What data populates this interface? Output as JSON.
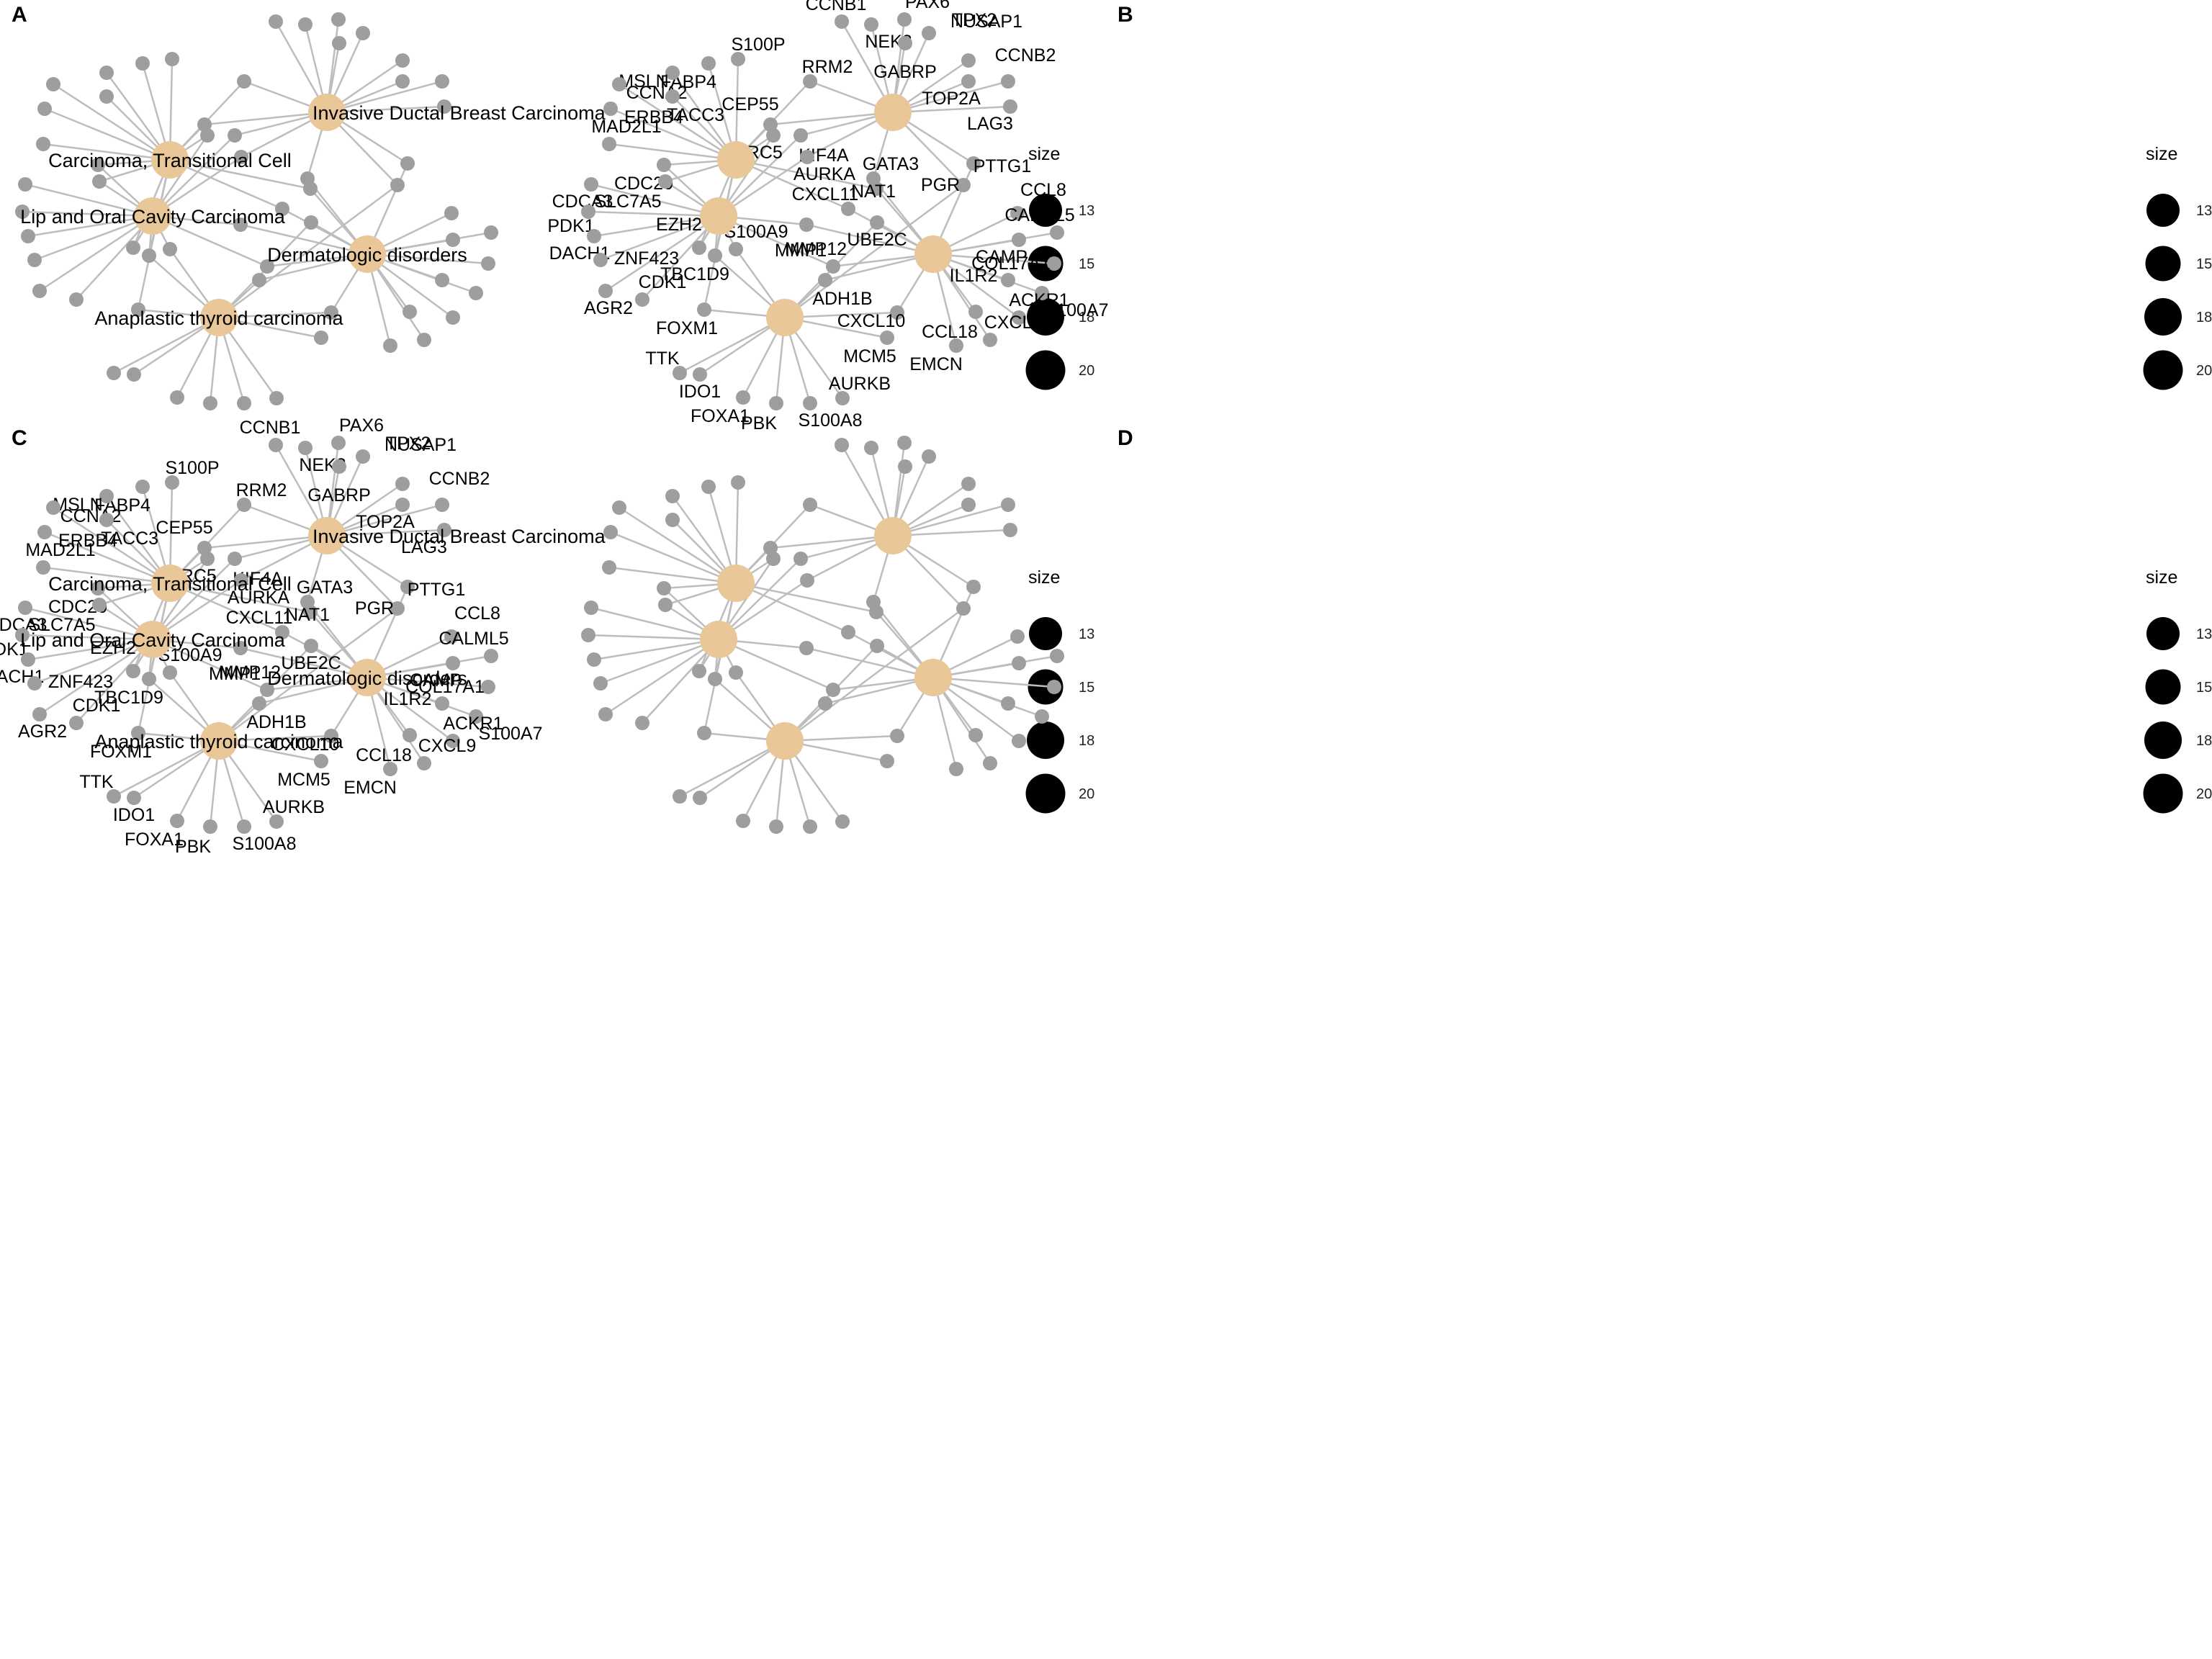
{
  "panels": [
    {
      "letter": "A",
      "show_gene_labels": false,
      "show_disease_labels": true
    },
    {
      "letter": "B",
      "show_gene_labels": true,
      "show_disease_labels": false
    },
    {
      "letter": "C",
      "show_gene_labels": true,
      "show_disease_labels": true
    },
    {
      "letter": "D",
      "show_gene_labels": false,
      "show_disease_labels": false
    }
  ],
  "legend": {
    "title": "size",
    "values": [
      "13",
      "15",
      "18",
      "20"
    ]
  },
  "colors": {
    "disease_node": "#e9c798",
    "gene_node": "#9e9e9e",
    "edge": "#bdbdbd"
  },
  "diseases": [
    "Invasive Ductal Breast Carcinoma",
    "Carcinoma, Transitional Cell",
    "Lip and Oral Cavity Carcinoma",
    "Dermatologic disorders",
    "Anaplastic thyroid carcinoma"
  ],
  "genes": [
    "CCNB1",
    "NEK2",
    "PAX6",
    "NUSAP1",
    "GABRP",
    "TPX2",
    "CCNB2",
    "TOP2A",
    "LAG3",
    "S100P",
    "FABP4",
    "MSLN",
    "RRM2",
    "CCNA2",
    "TACC3",
    "CEP55",
    "ERBB4",
    "BIRC5",
    "KIF4A",
    "MAD2L1",
    "AURKA",
    "PTTG1",
    "GATA3",
    "CDC20",
    "NAT1",
    "PGR",
    "CDCA3",
    "SLC7A5",
    "CXCL11",
    "CCL8",
    "PDK1",
    "MMP1",
    "CALML5",
    "UBE2C",
    "DACH1",
    "EZH2",
    "S100A9",
    "CAMP",
    "ZNF423",
    "TBC1D9",
    "MMP12",
    "COL17A1",
    "IL1R2",
    "ADH1B",
    "AGR2",
    "CDK1",
    "S100A7",
    "ACKR1",
    "FOXM1",
    "CXCL10",
    "CCL18",
    "CXCL9",
    "MCM5",
    "EMCN",
    "TTK",
    "IDO1",
    "AURKB",
    "FOXA1",
    "PBK",
    "S100A8"
  ]
}
